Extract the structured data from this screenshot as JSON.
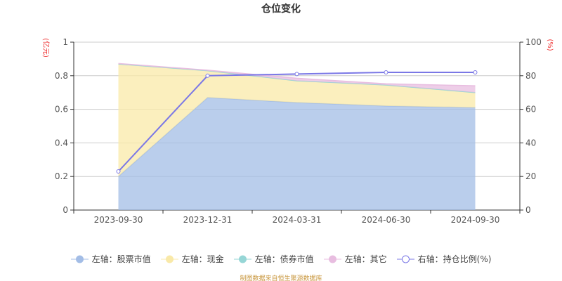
{
  "chart_data": {
    "type": "area",
    "title": "仓位变化",
    "left_axis_unit": "(亿元)",
    "right_axis_unit": "(%)",
    "categories": [
      "2023-09-30",
      "2023-12-31",
      "2024-03-31",
      "2024-06-30",
      "2024-09-30"
    ],
    "ylim_left": [
      0,
      1
    ],
    "yticks_left": [
      "0",
      "0.2",
      "0.4",
      "0.6",
      "0.8",
      "1"
    ],
    "ylim_right": [
      0,
      100
    ],
    "yticks_right": [
      "0",
      "20",
      "40",
      "60",
      "80",
      "100"
    ],
    "stacked": true,
    "grid": true,
    "legend_position": "bottom",
    "series": [
      {
        "name": "左轴：股票市值",
        "axis": "left",
        "type": "area",
        "color": "#a3bde6",
        "values": [
          0.2,
          0.67,
          0.64,
          0.62,
          0.61
        ]
      },
      {
        "name": "左轴：现金",
        "axis": "left",
        "type": "area",
        "color": "#f9e9a8",
        "values": [
          0.67,
          0.16,
          0.13,
          0.125,
          0.09
        ]
      },
      {
        "name": "左轴：债券市值",
        "axis": "left",
        "type": "area",
        "color": "#96d6d6",
        "values": [
          0,
          0,
          0,
          0,
          0
        ]
      },
      {
        "name": "左轴：其它",
        "axis": "left",
        "type": "area",
        "color": "#e8bde0",
        "values": [
          0.003,
          0.003,
          0.015,
          0.007,
          0.04
        ]
      },
      {
        "name": "右轴：持仓比例(%)",
        "axis": "right",
        "type": "line",
        "color": "#7b78e6",
        "values": [
          23,
          80,
          81,
          82,
          82
        ]
      }
    ]
  },
  "source": "制图数据来自恒生聚源数据库"
}
